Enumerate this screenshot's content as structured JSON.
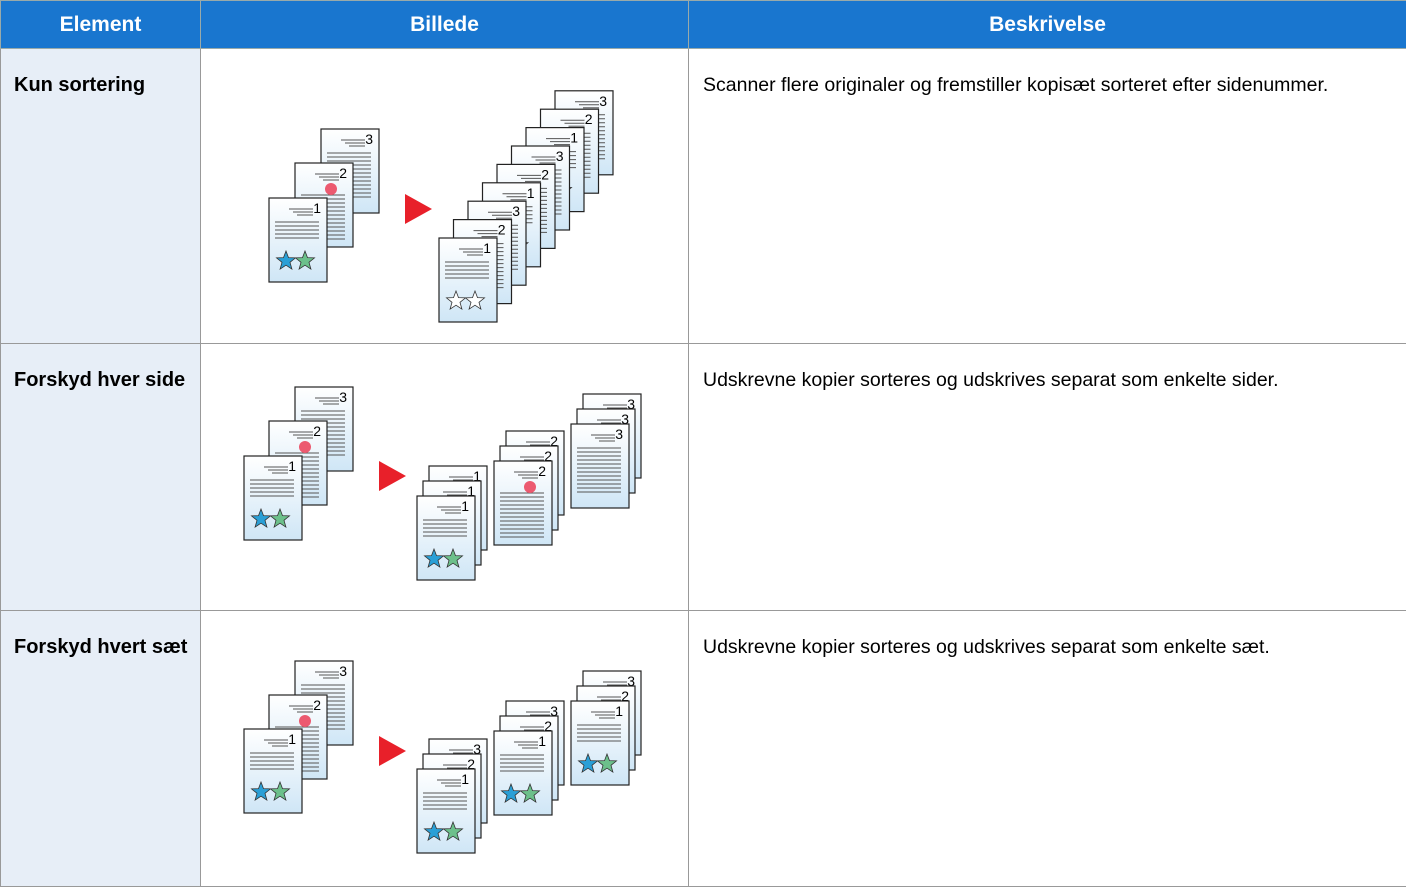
{
  "table": {
    "headers": [
      "Element",
      "Billede",
      "Beskrivelse"
    ],
    "rows": [
      [
        "Kun sortering",
        "Scanner flere originaler og fremstiller kopisæt sorteret efter sidenummer."
      ],
      [
        "Forskyd hver side",
        "Udskrevne kopier sorteres og udskrives separat som enkelte sider."
      ],
      [
        "Forskyd hvert sæt",
        "Udskrevne kopier sorteres og udskrives separat som enkelte sæt."
      ]
    ]
  },
  "illustration": {
    "page_numbers": [
      "1",
      "2",
      "3"
    ]
  }
}
